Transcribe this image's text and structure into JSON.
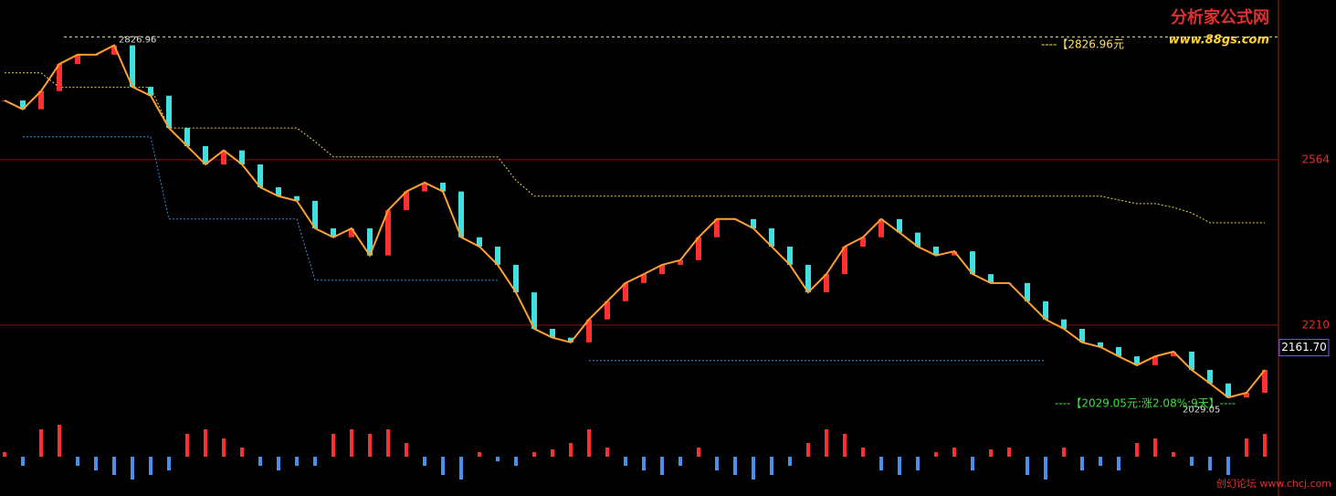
{
  "chart_data": [
    {
      "type": "candle-line",
      "values": [
        2691,
        2672,
        2711,
        2769,
        2789,
        2789,
        2809,
        2720,
        2701,
        2632,
        2593,
        2554,
        2584,
        2554,
        2505,
        2486,
        2476,
        2417,
        2398,
        2417,
        2359,
        2456,
        2496,
        2515,
        2496,
        2398,
        2378,
        2339,
        2280,
        2202,
        2183,
        2173,
        2222,
        2261,
        2300,
        2319,
        2339,
        2349,
        2398,
        2437,
        2437,
        2417,
        2378,
        2339,
        2280,
        2319,
        2378,
        2398,
        2437,
        2408,
        2378,
        2359,
        2368,
        2319,
        2300,
        2300,
        2261,
        2222,
        2202,
        2173,
        2163,
        2143,
        2124,
        2143,
        2153,
        2114,
        2085,
        2055,
        2065,
        2114
      ],
      "series": [
        {
          "name": "upper",
          "color": "#e8d44d",
          "values": [
            2750,
            2750,
            2750,
            2719,
            2719,
            2719,
            2719,
            2719,
            2719,
            2632,
            2632,
            2632,
            2632,
            2632,
            2632,
            2632,
            2632,
            2603,
            2570,
            2570,
            2570,
            2570,
            2570,
            2570,
            2570,
            2570,
            2570,
            2570,
            2520,
            2486,
            2486,
            2486,
            2486,
            2486,
            2486,
            2486,
            2486,
            2486,
            2486,
            2486,
            2486,
            2486,
            2486,
            2486,
            2486,
            2486,
            2486,
            2486,
            2486,
            2486,
            2486,
            2486,
            2486,
            2486,
            2486,
            2486,
            2486,
            2486,
            2486,
            2486,
            2486,
            2478,
            2470,
            2470,
            2462,
            2450,
            2429,
            2429,
            2429,
            2429
          ]
        },
        {
          "name": "lower",
          "color": "#3a8fd9",
          "values": [
            null,
            2613,
            2613,
            2613,
            2613,
            2613,
            2613,
            2613,
            2613,
            2437,
            2437,
            2437,
            2437,
            2437,
            2437,
            2437,
            2437,
            2306,
            2306,
            2306,
            2306,
            2306,
            2306,
            2306,
            2306,
            2306,
            2306,
            2306,
            null,
            null,
            null,
            null,
            2134,
            2134,
            2134,
            2134,
            2134,
            2134,
            2134,
            2134,
            2134,
            2134,
            2134,
            2134,
            2134,
            2134,
            2134,
            2134,
            2134,
            2134,
            2134,
            2134,
            2134,
            2134,
            2134,
            2134,
            2134,
            2134,
            null,
            null,
            null,
            null,
            null,
            null,
            null,
            null,
            null,
            null,
            null,
            null
          ]
        }
      ],
      "ylim": [
        1844,
        2906
      ],
      "yticks": [
        2564,
        2210
      ],
      "high": 2826.96,
      "low": 2029.05,
      "last": {
        "value": 2161.7,
        "label": "2161.70"
      },
      "high_note": "----【2826.96元",
      "low_note": "----【2029.05元:涨2.08%:9天】----"
    },
    {
      "type": "histogram",
      "values": [
        5,
        -10,
        30,
        35,
        -10,
        -15,
        -20,
        -25,
        -20,
        -15,
        25,
        30,
        20,
        10,
        -10,
        -15,
        -10,
        -10,
        25,
        30,
        25,
        30,
        15,
        -10,
        -20,
        -25,
        5,
        -5,
        -10,
        5,
        8,
        15,
        30,
        10,
        -10,
        -15,
        -20,
        -10,
        10,
        -15,
        -20,
        -25,
        -20,
        -10,
        15,
        30,
        25,
        10,
        -15,
        -20,
        -15,
        5,
        10,
        -15,
        8,
        10,
        -20,
        -25,
        10,
        -15,
        -10,
        -15,
        15,
        20,
        5,
        -10,
        -15,
        -20,
        20,
        25
      ],
      "ylim": [
        -35,
        45
      ]
    }
  ],
  "watermark_top": "分析家公式网",
  "watermark_url": "www.88gs.com",
  "watermark_bottom": "创幻论坛 www.chcj.com"
}
